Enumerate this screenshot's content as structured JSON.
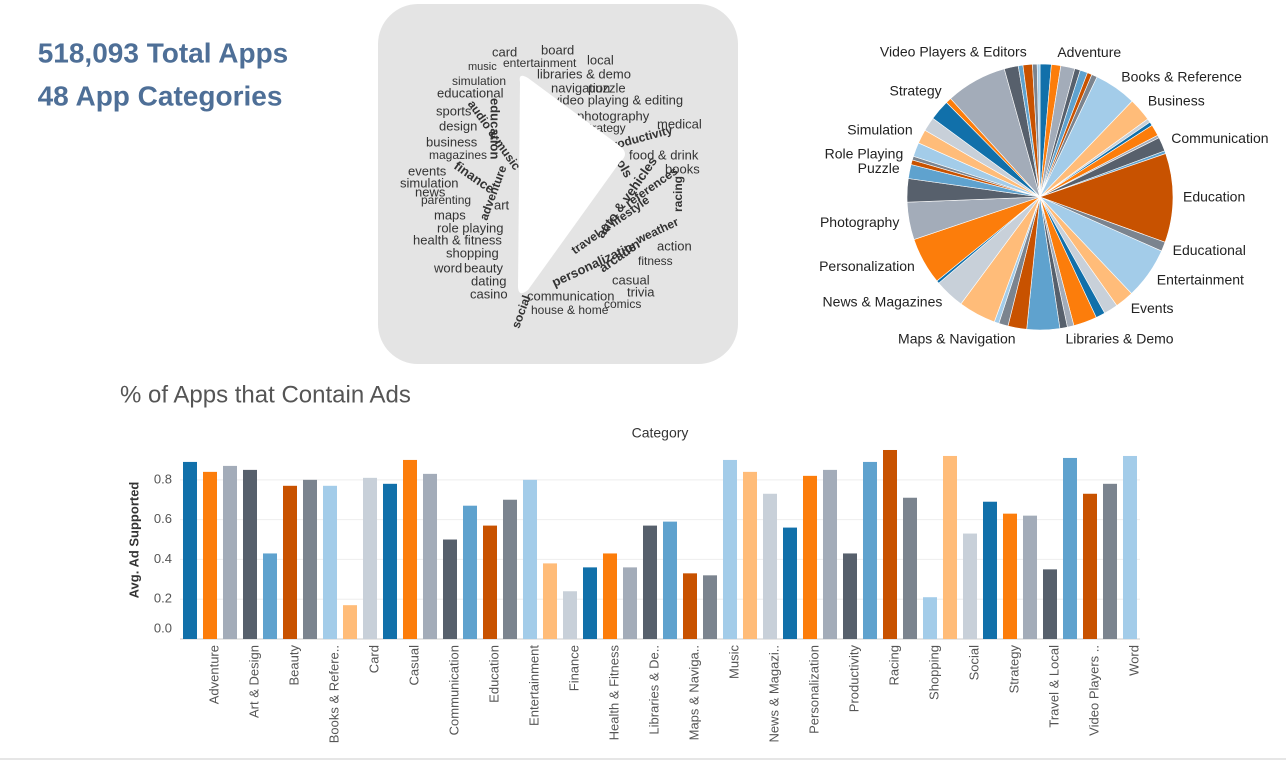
{
  "kpis": {
    "total": "518,093 Total Apps",
    "categories": "48 App Categories"
  },
  "word_cloud": {
    "words": [
      {
        "text": "card",
        "color": "#f28e2b"
      },
      {
        "text": "board",
        "color": "#7b848f"
      },
      {
        "text": "local",
        "color": "#a3acb9"
      },
      {
        "text": "music",
        "color": "#57606c"
      },
      {
        "text": "entertainment",
        "color": "#7b848f"
      },
      {
        "text": "simulation",
        "color": "#57606c"
      },
      {
        "text": "libraries & demo",
        "color": "#f28e2b"
      },
      {
        "text": "puzzle",
        "color": "#f28e2b"
      },
      {
        "text": "educational",
        "color": "#f28e2b"
      },
      {
        "text": "navigation",
        "color": "#1f6fb4"
      },
      {
        "text": "video playing & editing",
        "color": "#a3acb9"
      },
      {
        "text": "sports",
        "color": "#f28e2b"
      },
      {
        "text": "education",
        "color": "#f28e2b"
      },
      {
        "text": "photography",
        "color": "#1f6fb4"
      },
      {
        "text": "design",
        "color": "#1f6fb4"
      },
      {
        "text": "audio & music",
        "color": "#1f6fb4"
      },
      {
        "text": "strategy",
        "color": "#7b848f"
      },
      {
        "text": "medical",
        "color": "#f2a14b"
      },
      {
        "text": "business",
        "color": "#f28e2b"
      },
      {
        "text": "productivity",
        "color": "#f28e2b"
      },
      {
        "text": "magazines",
        "color": "#1f6fb4"
      },
      {
        "text": "food & drink",
        "color": "#7b848f"
      },
      {
        "text": "events",
        "color": "#1f6fb4"
      },
      {
        "text": "tools",
        "color": "#5fa2ce"
      },
      {
        "text": "books",
        "color": "#1f6fb4"
      },
      {
        "text": "simulation",
        "color": "#1f6fb4"
      },
      {
        "text": "finance",
        "color": "#ffbc79"
      },
      {
        "text": "news",
        "color": "#f2a14b"
      },
      {
        "text": "parenting",
        "color": "#f28e2b"
      },
      {
        "text": "adventure",
        "color": "#f28e2b"
      },
      {
        "text": "art",
        "color": "#a3acb9"
      },
      {
        "text": "references",
        "color": "#1f6fb4"
      },
      {
        "text": "maps",
        "color": "#f28e2b"
      },
      {
        "text": "racing",
        "color": "#a3acb9"
      },
      {
        "text": "role playing",
        "color": "#f28e2b"
      },
      {
        "text": "weather",
        "color": "#1f6fb4"
      },
      {
        "text": "health & fitness",
        "color": "#1f6fb4"
      },
      {
        "text": "travel & lifestyle",
        "color": "#f28e2b"
      },
      {
        "text": "action",
        "color": "#1f6fb4"
      },
      {
        "text": "shopping",
        "color": "#ffbc79"
      },
      {
        "text": "fitness",
        "color": "#f28e2b"
      },
      {
        "text": "word",
        "color": "#f28e2b"
      },
      {
        "text": "beauty",
        "color": "#ffbc79"
      },
      {
        "text": "arcade",
        "color": "#ffbc79"
      },
      {
        "text": "personalization",
        "color": "#a3acb9"
      },
      {
        "text": "dating",
        "color": "#a3acb9"
      },
      {
        "text": "casual",
        "color": "#5fa2ce"
      },
      {
        "text": "casino",
        "color": "#7b848f"
      },
      {
        "text": "trivia",
        "color": "#f28e2b"
      },
      {
        "text": "social",
        "color": "#ffbc79"
      },
      {
        "text": "communication",
        "color": "#ffbc79"
      },
      {
        "text": "comics",
        "color": "#f28e2b"
      },
      {
        "text": "house & home",
        "color": "#f28e2b"
      },
      {
        "text": "auto & vehicles",
        "color": "#f28e2b"
      }
    ]
  },
  "chart_data": [
    {
      "type": "pie",
      "palette": [
        "#1170aa",
        "#fc7d0b",
        "#a3acb9",
        "#57606c",
        "#5fa2ce",
        "#c85200",
        "#7b848f",
        "#a3cce9",
        "#ffbc79",
        "#c8d0d9"
      ],
      "categories": [
        null,
        "Adventure",
        null,
        null,
        null,
        null,
        null,
        "Books & Reference",
        "Business",
        null,
        null,
        null,
        null,
        "Communication",
        null,
        "Education",
        "Educational",
        "Entertainment",
        "Events",
        null,
        null,
        null,
        null,
        "Libraries & Demo",
        null,
        "Maps & Navigation",
        null,
        null,
        null,
        "News & Magazines",
        null,
        "Personalization",
        "Photography",
        null,
        "Puzzle",
        null,
        "Role Playing",
        null,
        "Simulation",
        null,
        null,
        "Strategy",
        null,
        null,
        null,
        "Video Players & Editors",
        null,
        null
      ],
      "values": [
        1.2,
        1.0,
        1.5,
        0.6,
        0.8,
        0.5,
        0.6,
        4.5,
        2.5,
        0.4,
        0.4,
        1.2,
        0.3,
        1.5,
        0.3,
        9.5,
        1.0,
        5.5,
        2.0,
        1.5,
        1.0,
        2.5,
        0.7,
        0.8,
        3.5,
        2.0,
        1.0,
        0.5,
        4.0,
        3.2,
        0.3,
        5.0,
        4.0,
        2.5,
        1.5,
        0.5,
        0.4,
        1.5,
        1.5,
        1.5,
        2.2,
        0.6,
        6.5,
        1.5,
        0.5,
        1.0,
        0.5,
        0.3
      ]
    },
    {
      "type": "bar",
      "title": "% of Apps that Contain Ads",
      "x_label": "Category",
      "y_label": "Avg. Ad Supported",
      "palette": [
        "#1170aa",
        "#fc7d0b",
        "#a3acb9",
        "#57606c",
        "#5fa2ce",
        "#c85200",
        "#7b848f",
        "#a3cce9",
        "#ffbc79",
        "#c8d0d9"
      ],
      "categories": [
        null,
        "Adventure",
        null,
        "Art & Design",
        null,
        "Beauty",
        null,
        "Books & Refere..",
        null,
        "Card",
        null,
        "Casual",
        null,
        "Communication",
        null,
        "Education",
        null,
        "Entertainment",
        null,
        "Finance",
        null,
        "Health & Fitness",
        null,
        "Libraries & De..",
        null,
        "Maps & Naviga..",
        null,
        "Music",
        null,
        "News & Magazi..",
        null,
        "Personalization",
        null,
        "Productivity",
        null,
        "Racing",
        null,
        "Shopping",
        null,
        "Social",
        null,
        "Strategy",
        null,
        "Travel & Local",
        null,
        "Video Players ..",
        null,
        "Word"
      ],
      "values": [
        0.89,
        0.84,
        0.87,
        0.85,
        0.43,
        0.77,
        0.8,
        0.77,
        0.17,
        0.81,
        0.78,
        0.9,
        0.83,
        0.5,
        0.67,
        0.57,
        0.7,
        0.8,
        0.38,
        0.24,
        0.36,
        0.43,
        0.36,
        0.57,
        0.59,
        0.33,
        0.32,
        0.9,
        0.84,
        0.73,
        0.56,
        0.82,
        0.85,
        0.43,
        0.89,
        0.95,
        0.71,
        0.21,
        0.92,
        0.53,
        0.69,
        0.63,
        0.62,
        0.35,
        0.91,
        0.73,
        0.78,
        0.92
      ],
      "ylim": [
        0,
        0.96
      ],
      "yticks": [
        {
          "value": 0,
          "label": "0.0"
        },
        0.2,
        0.4,
        0.6,
        0.8
      ],
      "grid": true
    }
  ]
}
